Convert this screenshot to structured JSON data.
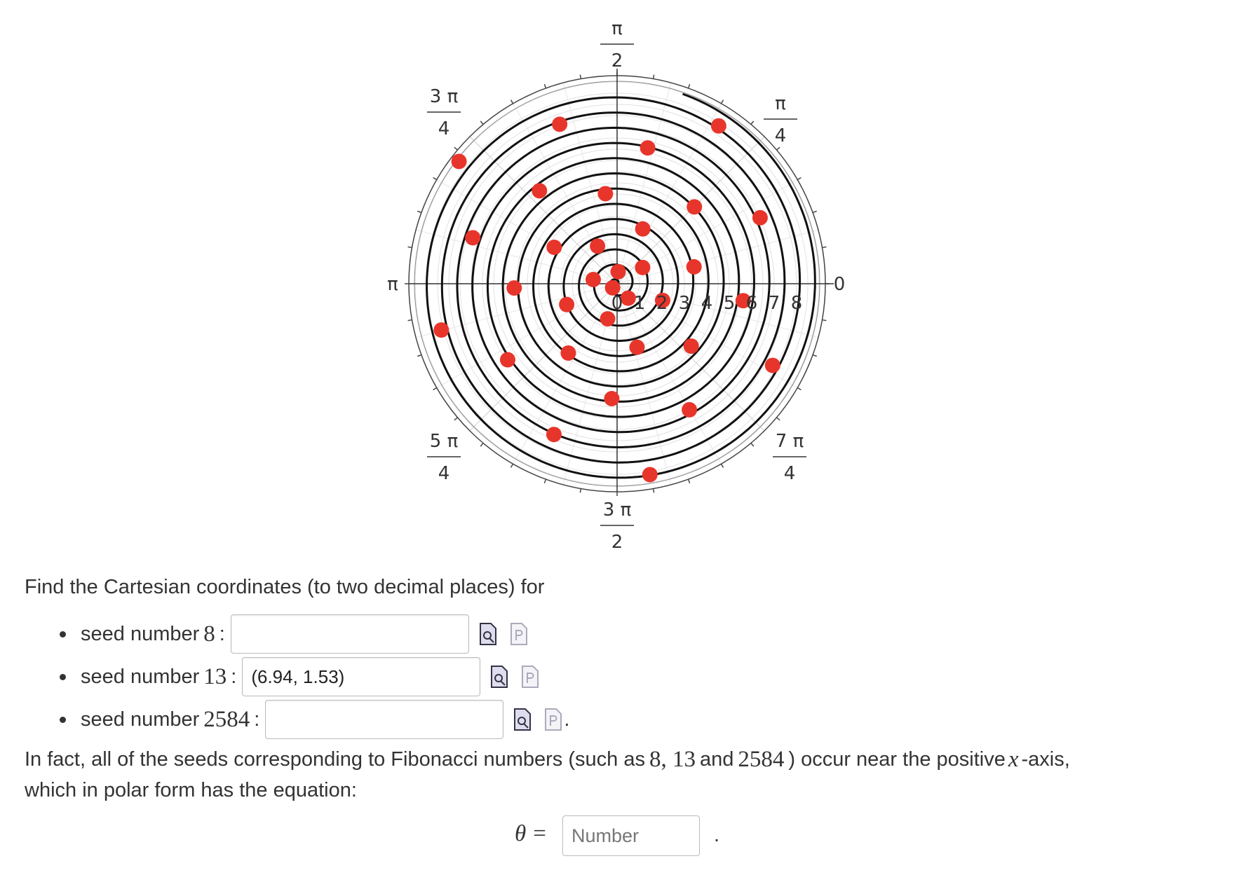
{
  "plot": {
    "angle_labels": [
      {
        "numerator": "π",
        "denominator": "2"
      },
      {
        "numerator": "π",
        "denominator": "4"
      },
      {
        "numerator": "3 π",
        "denominator": "4"
      },
      {
        "text": "π"
      },
      {
        "text": "0"
      },
      {
        "numerator": "5 π",
        "denominator": "4"
      },
      {
        "numerator": "7 π",
        "denominator": "4"
      },
      {
        "numerator": "3 π",
        "denominator": "2"
      }
    ],
    "radial_labels": [
      "0",
      "1",
      "2",
      "3",
      "4",
      "5",
      "6",
      "7",
      "8"
    ]
  },
  "question": {
    "intro": "Find the Cartesian coordinates (to two decimal places) for",
    "items": [
      {
        "prefix": "seed number",
        "number": "8",
        "suffix": ":"
      },
      {
        "prefix": "seed number",
        "number": "13",
        "suffix": ":",
        "answer": "(6.94, 1.53)"
      },
      {
        "prefix": "seed number",
        "number": "2584",
        "suffix": ":",
        "trailing": "."
      }
    ],
    "conclusion": {
      "part1": "In fact, all of the seeds corresponding to Fibonacci numbers (such as",
      "math1": "8, 13",
      "part2": "and",
      "math2": "2584",
      "part3": ") occur near the positive",
      "math3": "x",
      "part4": "-axis,",
      "line2": "which in polar form has the equation:"
    },
    "equation": {
      "variable": "θ",
      "equals": "=",
      "placeholder": "Number",
      "trailing": "."
    }
  }
}
